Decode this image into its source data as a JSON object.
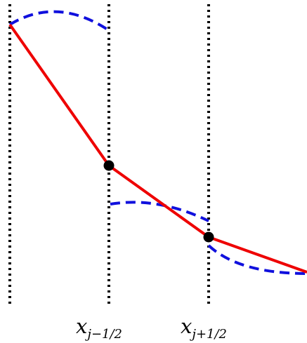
{
  "colors": {
    "grid_line": "#000000",
    "piecewise_linear": "#ee0000",
    "dashed_curves": "#1010dd",
    "nodes": "#000000"
  },
  "labels": [
    {
      "base": "x",
      "sub": "j−1/2"
    },
    {
      "base": "x",
      "sub": "j+1/2"
    }
  ]
}
